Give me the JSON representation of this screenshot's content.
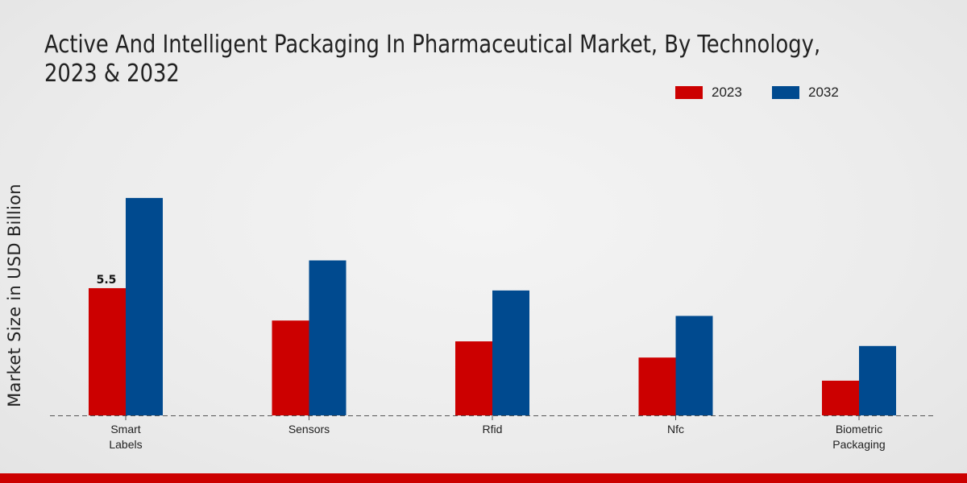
{
  "title": "Active And Intelligent Packaging In Pharmaceutical Market, By Technology, 2023 & 2032",
  "y_axis_label": "Market Size in USD Billion",
  "colors": {
    "series_2023": "#cc0000",
    "series_2032": "#004a8f",
    "footer": "#cc0000"
  },
  "chart_data": {
    "type": "bar",
    "title": "Active And Intelligent Packaging In Pharmaceutical Market, By Technology, 2023 & 2032",
    "xlabel": "",
    "ylabel": "Market Size in USD Billion",
    "categories": [
      "Smart Labels",
      "Sensors",
      "Rfid",
      "Nfc",
      "Biometric Packaging"
    ],
    "category_lines": [
      [
        "Smart",
        "Labels"
      ],
      [
        "Sensors"
      ],
      [
        "Rfid"
      ],
      [
        "Nfc"
      ],
      [
        "Biometric",
        "Packaging"
      ]
    ],
    "series": [
      {
        "name": "2023",
        "values": [
          5.5,
          4.1,
          3.2,
          2.5,
          1.5
        ]
      },
      {
        "name": "2032",
        "values": [
          9.4,
          6.7,
          5.4,
          4.3,
          3.0
        ]
      }
    ],
    "ylim": [
      0,
      15
    ],
    "grid": false,
    "legend_position": "top-right",
    "annotations": [
      {
        "series": "2023",
        "category": "Smart Labels",
        "text": "5.5"
      }
    ]
  }
}
